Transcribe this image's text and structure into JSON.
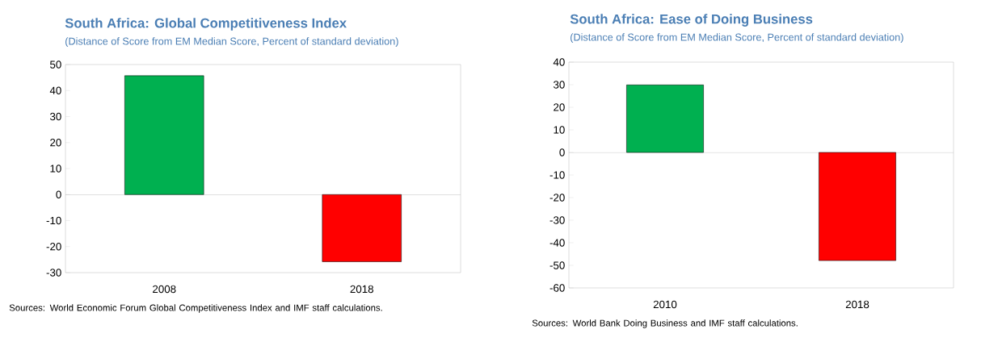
{
  "chart_data": [
    {
      "type": "bar",
      "title": "South Africa: Global Competitiveness Index",
      "subtitle": "(Distance of Score from EM Median Score, Percent of standard deviation)",
      "categories": [
        "2008",
        "2018"
      ],
      "values": [
        45.7,
        -25.8
      ],
      "colors": [
        "#00b050",
        "#ff0000"
      ],
      "ylim": [
        -30,
        50
      ],
      "yticks": [
        -30,
        -20,
        -10,
        0,
        10,
        20,
        30,
        40,
        50
      ],
      "annotations": [
        "Sources: World Economic Forum Global Competitiveness Index and IMF staff calculations."
      ]
    },
    {
      "type": "bar",
      "title": "South Africa: Ease of Doing Business",
      "subtitle": "(Distance of Score from EM Median Score, Percent of standard deviation)",
      "categories": [
        "2010",
        "2018"
      ],
      "values": [
        29.9,
        -47.9
      ],
      "colors": [
        "#00b050",
        "#ff0000"
      ],
      "ylim": [
        -60,
        40
      ],
      "yticks": [
        -60,
        -50,
        -40,
        -30,
        -20,
        -10,
        0,
        10,
        20,
        30,
        40
      ],
      "annotations": [
        "Sources: World Bank Doing Business and IMF staff calculations."
      ]
    }
  ]
}
